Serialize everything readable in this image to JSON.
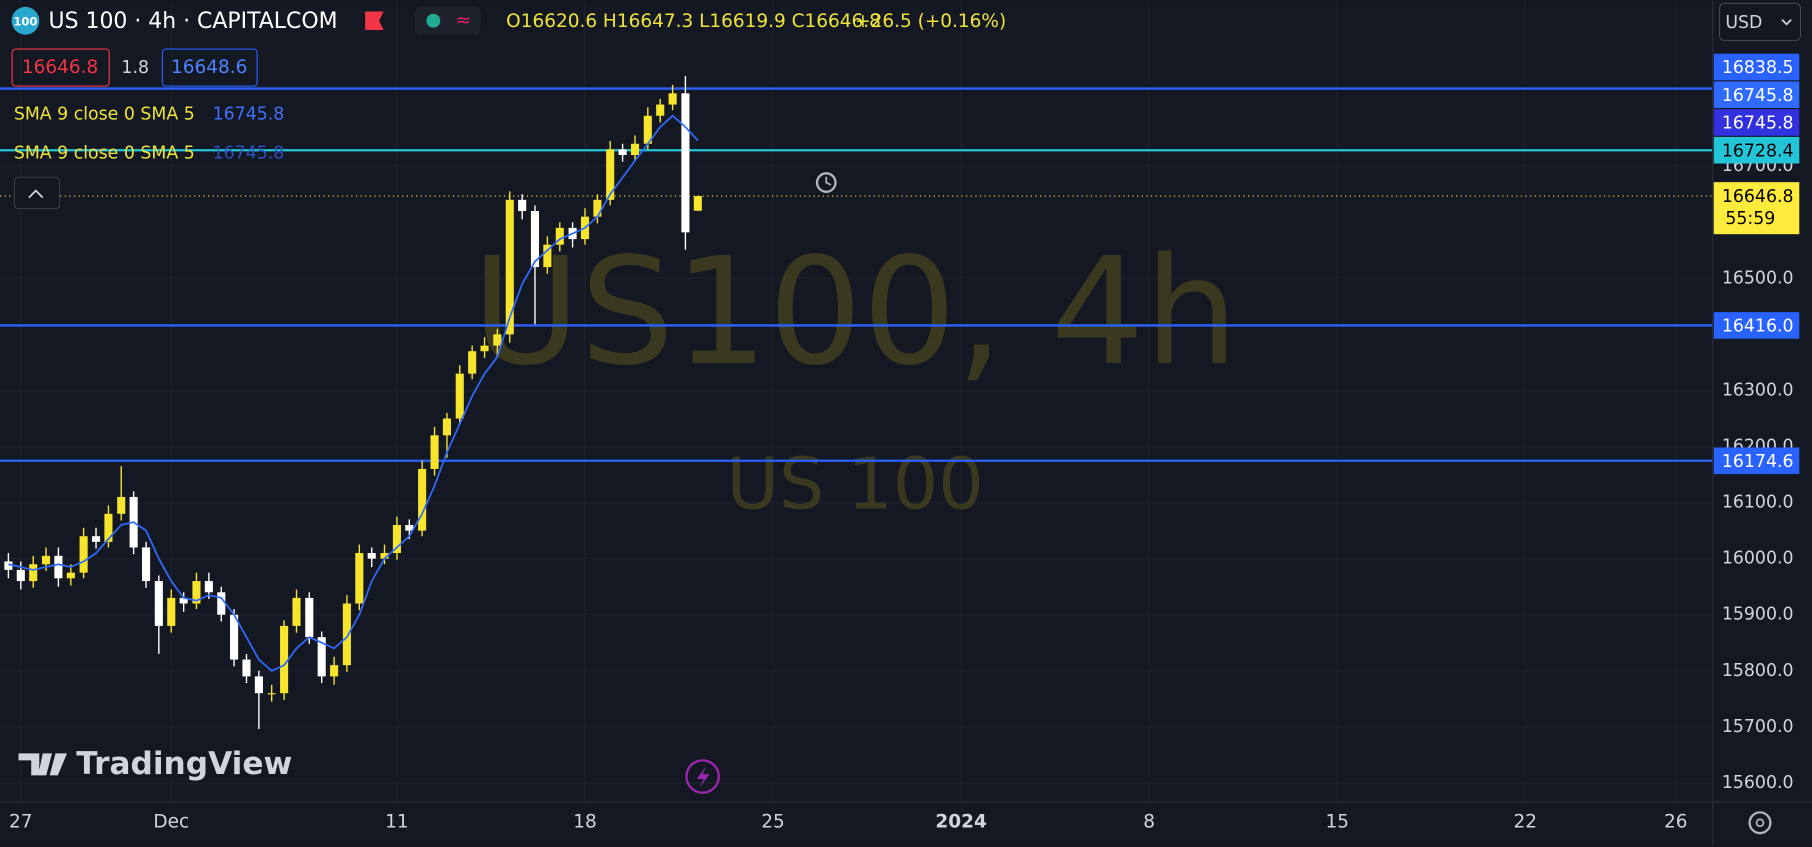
{
  "header": {
    "symbol_badge": "100",
    "title": "US 100 · 4h · CAPITALCOM",
    "ohlc": "O16620.6 H16647.3 L16619.9 C16646.8",
    "change": "+26.5 (+0.16%)",
    "currency": "USD"
  },
  "quote": {
    "bid": "16646.8",
    "spread": "1.8",
    "ask": "16648.6"
  },
  "indicators": [
    {
      "name": "SMA 9 close 0 SMA 5"
    },
    {
      "name": "SMA 9 close 0 SMA 5"
    }
  ],
  "watermark": {
    "title": "US100, 4h",
    "subtitle": "US 100"
  },
  "branding": "TradingView",
  "chart_data": {
    "type": "candlestick",
    "up_color": "#f7e42c",
    "down_color": "#ffffff",
    "xlim": [
      -0.553,
      44.98
    ],
    "xticks": [
      {
        "value": 0,
        "label": "27"
      },
      {
        "value": 4,
        "label": "Dec"
      },
      {
        "value": 10,
        "label": "11"
      },
      {
        "value": 15,
        "label": "18"
      },
      {
        "value": 20,
        "label": "25"
      },
      {
        "value": 25,
        "label": "2024"
      },
      {
        "value": 30,
        "label": "8"
      },
      {
        "value": 35,
        "label": "15"
      },
      {
        "value": 40,
        "label": "22"
      },
      {
        "value": 44,
        "label": "26"
      }
    ],
    "ylim": [
      15566,
      16912
    ],
    "yticks": [
      {
        "value": 16700,
        "label": "16700.0"
      },
      {
        "value": 16500,
        "label": "16500.0"
      },
      {
        "value": 16300,
        "label": "16300.0"
      },
      {
        "value": 16200,
        "label": "16200.0"
      },
      {
        "value": 16100,
        "label": "16100.0"
      },
      {
        "value": 16000,
        "label": "16000.0"
      },
      {
        "value": 15900,
        "label": "15900.0"
      },
      {
        "value": 15800,
        "label": "15800.0"
      },
      {
        "value": 15700,
        "label": "15700.0"
      },
      {
        "value": 15600,
        "label": "15600.0"
      }
    ],
    "grid": true,
    "x": [
      -0.33,
      0,
      0.33,
      0.67,
      1,
      1.33,
      1.67,
      2,
      2.33,
      2.67,
      3,
      3.33,
      3.67,
      4,
      4.33,
      4.67,
      5,
      5.33,
      5.67,
      6,
      6.33,
      6.67,
      7,
      7.33,
      7.67,
      8,
      8.33,
      8.67,
      9,
      9.33,
      9.67,
      10,
      10.33,
      10.67,
      11,
      11.33,
      11.67,
      12,
      12.33,
      12.67,
      13,
      13.33,
      13.67,
      14,
      14.33,
      14.67,
      15,
      15.33,
      15.67,
      16,
      16.33,
      16.67,
      17,
      17.33,
      17.67,
      18
    ],
    "open": [
      15995,
      15980,
      15960,
      15990,
      16005,
      15965,
      15975,
      16040,
      16030,
      16080,
      16110,
      16020,
      15960,
      15880,
      15930,
      15920,
      15960,
      15940,
      15900,
      15820,
      15790,
      15760,
      15760,
      15880,
      15930,
      15860,
      15790,
      15810,
      15920,
      16010,
      16000,
      16010,
      16060,
      16050,
      16160,
      16220,
      16250,
      16330,
      16370,
      16380,
      16400,
      16640,
      16620,
      16520,
      16560,
      16590,
      16570,
      16610,
      16640,
      16730,
      16720,
      16740,
      16790,
      16810,
      16830,
      16620.6
    ],
    "high": [
      16010,
      15995,
      16005,
      16020,
      16020,
      15990,
      16055,
      16055,
      16095,
      16165,
      16120,
      16030,
      15970,
      15945,
      15940,
      15975,
      15975,
      15950,
      15910,
      15830,
      15800,
      15775,
      15890,
      15945,
      15940,
      15870,
      15825,
      15935,
      16025,
      16020,
      16025,
      16075,
      16070,
      16175,
      16235,
      16260,
      16345,
      16380,
      16395,
      16410,
      16655,
      16650,
      16630,
      16575,
      16600,
      16600,
      16625,
      16650,
      16745,
      16740,
      16755,
      16805,
      16820,
      16845,
      16861,
      16647.3
    ],
    "low": [
      15965,
      15945,
      15948,
      15978,
      15950,
      15952,
      15965,
      16018,
      16020,
      16068,
      16008,
      15948,
      15830,
      15868,
      15905,
      15910,
      15928,
      15888,
      15808,
      15778,
      15696,
      15745,
      15748,
      15868,
      15848,
      15778,
      15775,
      15798,
      15908,
      15985,
      15990,
      15998,
      16035,
      16040,
      16148,
      16180,
      16240,
      16320,
      16358,
      16360,
      16385,
      16605,
      16418,
      16508,
      16548,
      16555,
      16560,
      16598,
      16630,
      16708,
      16710,
      16730,
      16778,
      16800,
      16551,
      16619.9
    ],
    "close": [
      15980,
      15960,
      15990,
      16005,
      15965,
      15975,
      16040,
      16030,
      16080,
      16110,
      16020,
      15960,
      15880,
      15930,
      15920,
      15960,
      15940,
      15900,
      15820,
      15790,
      15760,
      15760,
      15880,
      15930,
      15860,
      15790,
      15810,
      15920,
      16010,
      16000,
      16010,
      16060,
      16050,
      16160,
      16220,
      16250,
      16330,
      16370,
      16380,
      16400,
      16640,
      16620,
      16520,
      16560,
      16590,
      16570,
      16610,
      16640,
      16730,
      16720,
      16740,
      16790,
      16810,
      16830,
      16582,
      16646.8
    ],
    "sma": {
      "color": "#2f6bff",
      "values": [
        15990,
        15985,
        15980,
        15985,
        15990,
        15985,
        15995,
        16010,
        16035,
        16060,
        16065,
        16050,
        16000,
        15960,
        15930,
        15925,
        15935,
        15930,
        15900,
        15860,
        15820,
        15800,
        15810,
        15840,
        15860,
        15850,
        15840,
        15860,
        15900,
        15960,
        16000,
        16020,
        16040,
        16080,
        16130,
        16190,
        16240,
        16290,
        16330,
        16360,
        16430,
        16490,
        16530,
        16550,
        16570,
        16580,
        16590,
        16610,
        16650,
        16680,
        16710,
        16740,
        16770,
        16790,
        16770,
        16745.8
      ]
    },
    "levels": [
      {
        "value": 16838.5,
        "color": "#2962ff"
      },
      {
        "value": 16728.4,
        "color": "#22c5d8"
      },
      {
        "value": 16416,
        "label": "16416.0",
        "color": "#2962ff"
      },
      {
        "value": 16174.6,
        "color": "#2962ff"
      }
    ],
    "last_color": "#ffeb3b",
    "countdown": "55:59"
  }
}
